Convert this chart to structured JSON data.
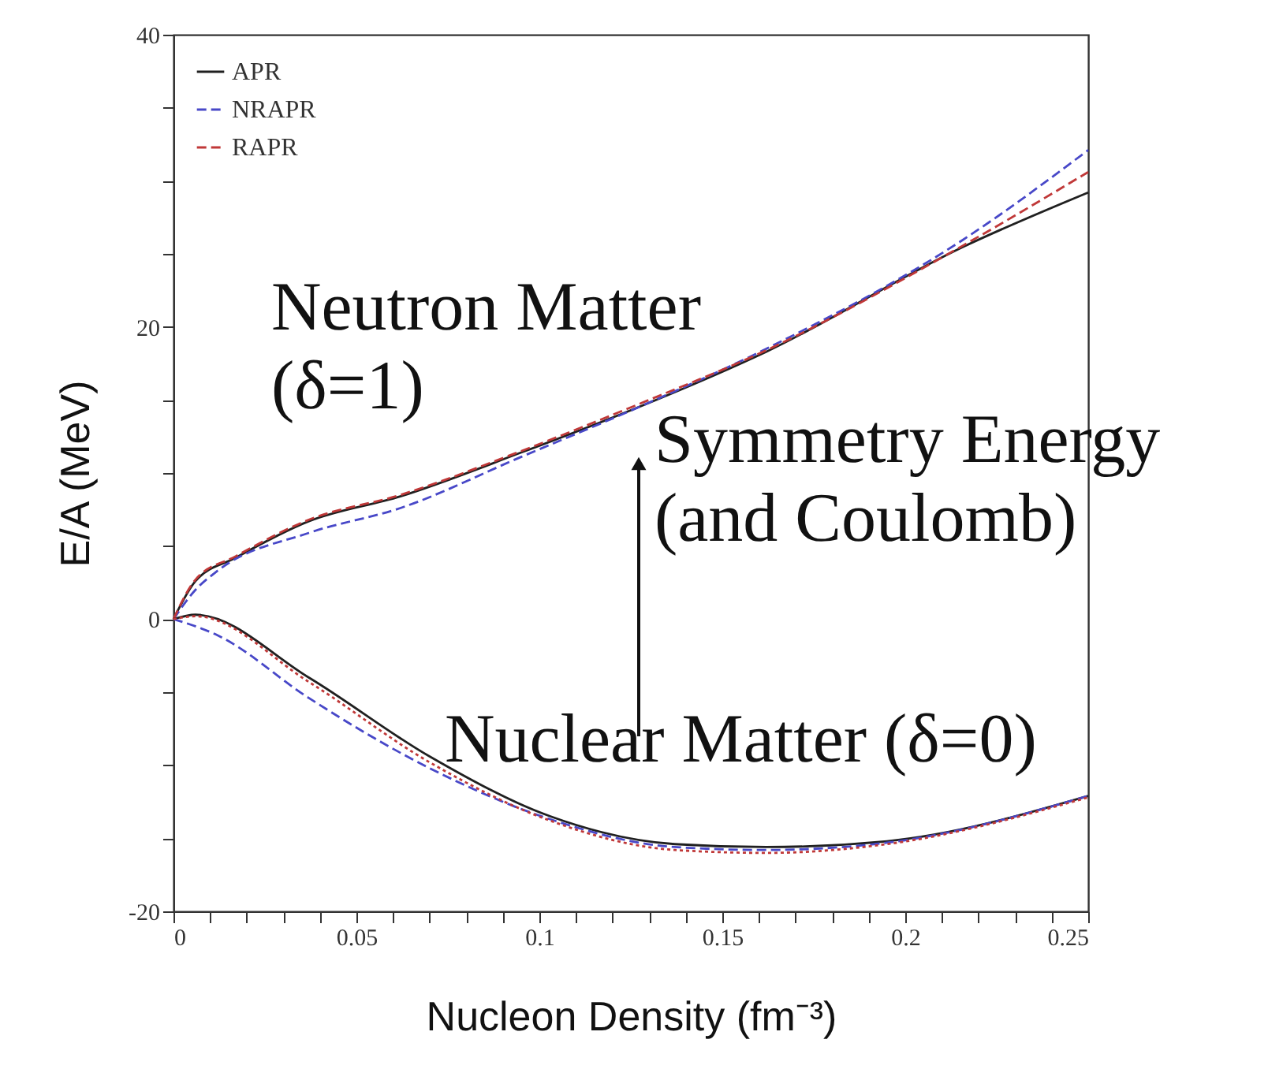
{
  "chart_data": {
    "type": "line",
    "xlabel": "Nucleon Density  (fm⁻³)",
    "ylabel": "E/A (MeV)",
    "xlim": [
      0,
      0.25
    ],
    "ylim": [
      -20,
      40
    ],
    "xticks": [
      0,
      {
        "value": 0.01,
        "label": null
      },
      {
        "value": 0.02,
        "label": null
      },
      {
        "value": 0.03,
        "label": null
      },
      {
        "value": 0.04,
        "label": null
      },
      0.05,
      {
        "value": 0.06,
        "label": null
      },
      {
        "value": 0.07,
        "label": null
      },
      {
        "value": 0.08,
        "label": null
      },
      {
        "value": 0.09,
        "label": null
      },
      0.1,
      {
        "value": 0.11,
        "label": null
      },
      {
        "value": 0.12,
        "label": null
      },
      {
        "value": 0.13,
        "label": null
      },
      {
        "value": 0.14,
        "label": null
      },
      0.15,
      {
        "value": 0.16,
        "label": null
      },
      {
        "value": 0.17,
        "label": null
      },
      {
        "value": 0.18,
        "label": null
      },
      {
        "value": 0.19,
        "label": null
      },
      0.2,
      {
        "value": 0.21,
        "label": null
      },
      {
        "value": 0.22,
        "label": null
      },
      {
        "value": 0.23,
        "label": null
      },
      {
        "value": 0.24,
        "label": null
      },
      0.25
    ],
    "yticks": [
      -20,
      {
        "value": -15,
        "label": null
      },
      {
        "value": -10,
        "label": null
      },
      {
        "value": -5,
        "label": null
      },
      0,
      {
        "value": 5,
        "label": null
      },
      {
        "value": 10,
        "label": null
      },
      {
        "value": 15,
        "label": null
      },
      20,
      {
        "value": 25,
        "label": null
      },
      {
        "value": 30,
        "label": null
      },
      {
        "value": 35,
        "label": null
      },
      40
    ],
    "grid": false,
    "legend": "top left",
    "marker": "none",
    "series": [
      {
        "name": "APR",
        "color": "#202020",
        "line_style": "solid",
        "x": [
          0,
          0.006,
          0.017,
          0.037,
          0.062,
          0.095,
          0.128,
          0.162,
          0.216,
          0.25
        ],
        "values": [
          0,
          2.6,
          4.2,
          6.7,
          8.4,
          11.4,
          14.6,
          18.3,
          25.5,
          29.2
        ]
      },
      {
        "name": "NRAPR",
        "color": "#4848c8",
        "line_style": "dashed",
        "x": [
          0,
          0.006,
          0.012,
          0.037,
          0.062,
          0.095,
          0.128,
          0.162,
          0.216,
          0.25
        ],
        "values": [
          0,
          2,
          3.3,
          5.9,
          7.6,
          11.1,
          14.6,
          18.5,
          26,
          32.1
        ]
      },
      {
        "name": "RAPR",
        "color": "#c03838",
        "line_style": "dashed",
        "x": [
          0,
          0.006,
          0.017,
          0.037,
          0.062,
          0.095,
          0.128,
          0.162,
          0.216,
          0.25
        ],
        "values": [
          0,
          2.7,
          4.3,
          6.8,
          8.5,
          11.5,
          14.8,
          18.4,
          25.6,
          30.6
        ]
      },
      {
        "color": "#202020",
        "line_style": "solid",
        "x": [
          0,
          0.006,
          0.037,
          0.07,
          0.103,
          0.137,
          0.162,
          0.195,
          0.25
        ],
        "values": [
          0,
          0.3,
          -4,
          -9.4,
          -13.5,
          -15.4,
          -15.6,
          -15.2,
          -12.1
        ]
      },
      {
        "color": "#4848c8",
        "line_style": "dashed",
        "x": [
          0,
          0.012,
          0.037,
          0.07,
          0.103,
          0.137,
          0.162,
          0.195,
          0.25
        ],
        "values": [
          0,
          -1.1,
          -5.4,
          -10.2,
          -13.7,
          -15.6,
          -15.8,
          -15.3,
          -12.1
        ]
      },
      {
        "color": "#c03838",
        "line_style": "dotted",
        "x": [
          0,
          0.006,
          0.037,
          0.07,
          0.103,
          0.137,
          0.162,
          0.195,
          0.25
        ],
        "values": [
          0,
          0.2,
          -4.3,
          -9.8,
          -13.8,
          -15.8,
          -16,
          -15.4,
          -12.2
        ]
      }
    ],
    "annotations": [
      "Neutron Matter\n(δ=1)",
      "Symmetry Energy\n(and Coulomb)",
      "Nuclear Matter (δ=0)"
    ]
  }
}
